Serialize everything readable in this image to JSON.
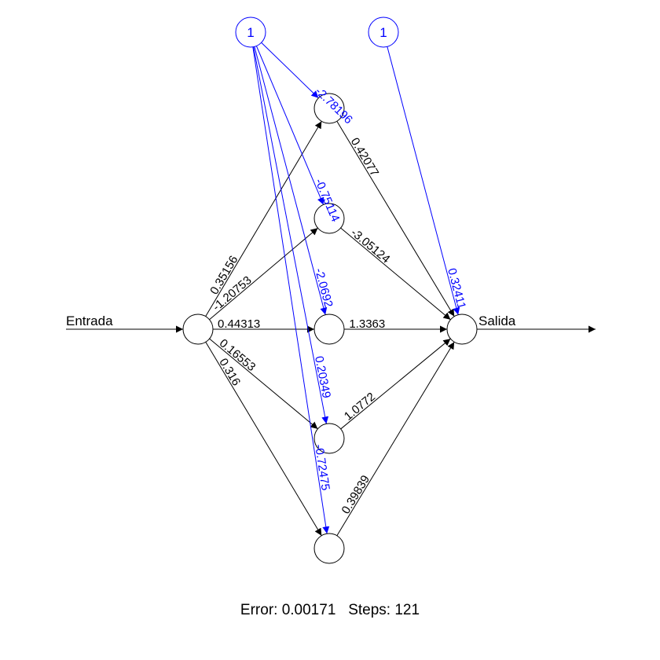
{
  "colors": {
    "weight": "#000000",
    "bias": "#0000ff",
    "background": "#ffffff"
  },
  "input_label": "Entrada",
  "output_label": "Salida",
  "bias_nodes": [
    {
      "label": "1"
    },
    {
      "label": "1"
    }
  ],
  "weights_input_hidden": [
    "0.35156",
    "-1.20753",
    "0.44313",
    "0.16553",
    "0.316"
  ],
  "weights_hidden_output": [
    "0.42077",
    "-3.05124",
    "1.3363",
    "1.0772",
    "0.39839"
  ],
  "bias_hidden": [
    "-2.78196",
    "-0.75114",
    "-2.0692",
    "0.20349",
    "-0.72475"
  ],
  "bias_output": "0.32411",
  "footer": {
    "text": "Error: 0.00171   Steps: 121"
  }
}
